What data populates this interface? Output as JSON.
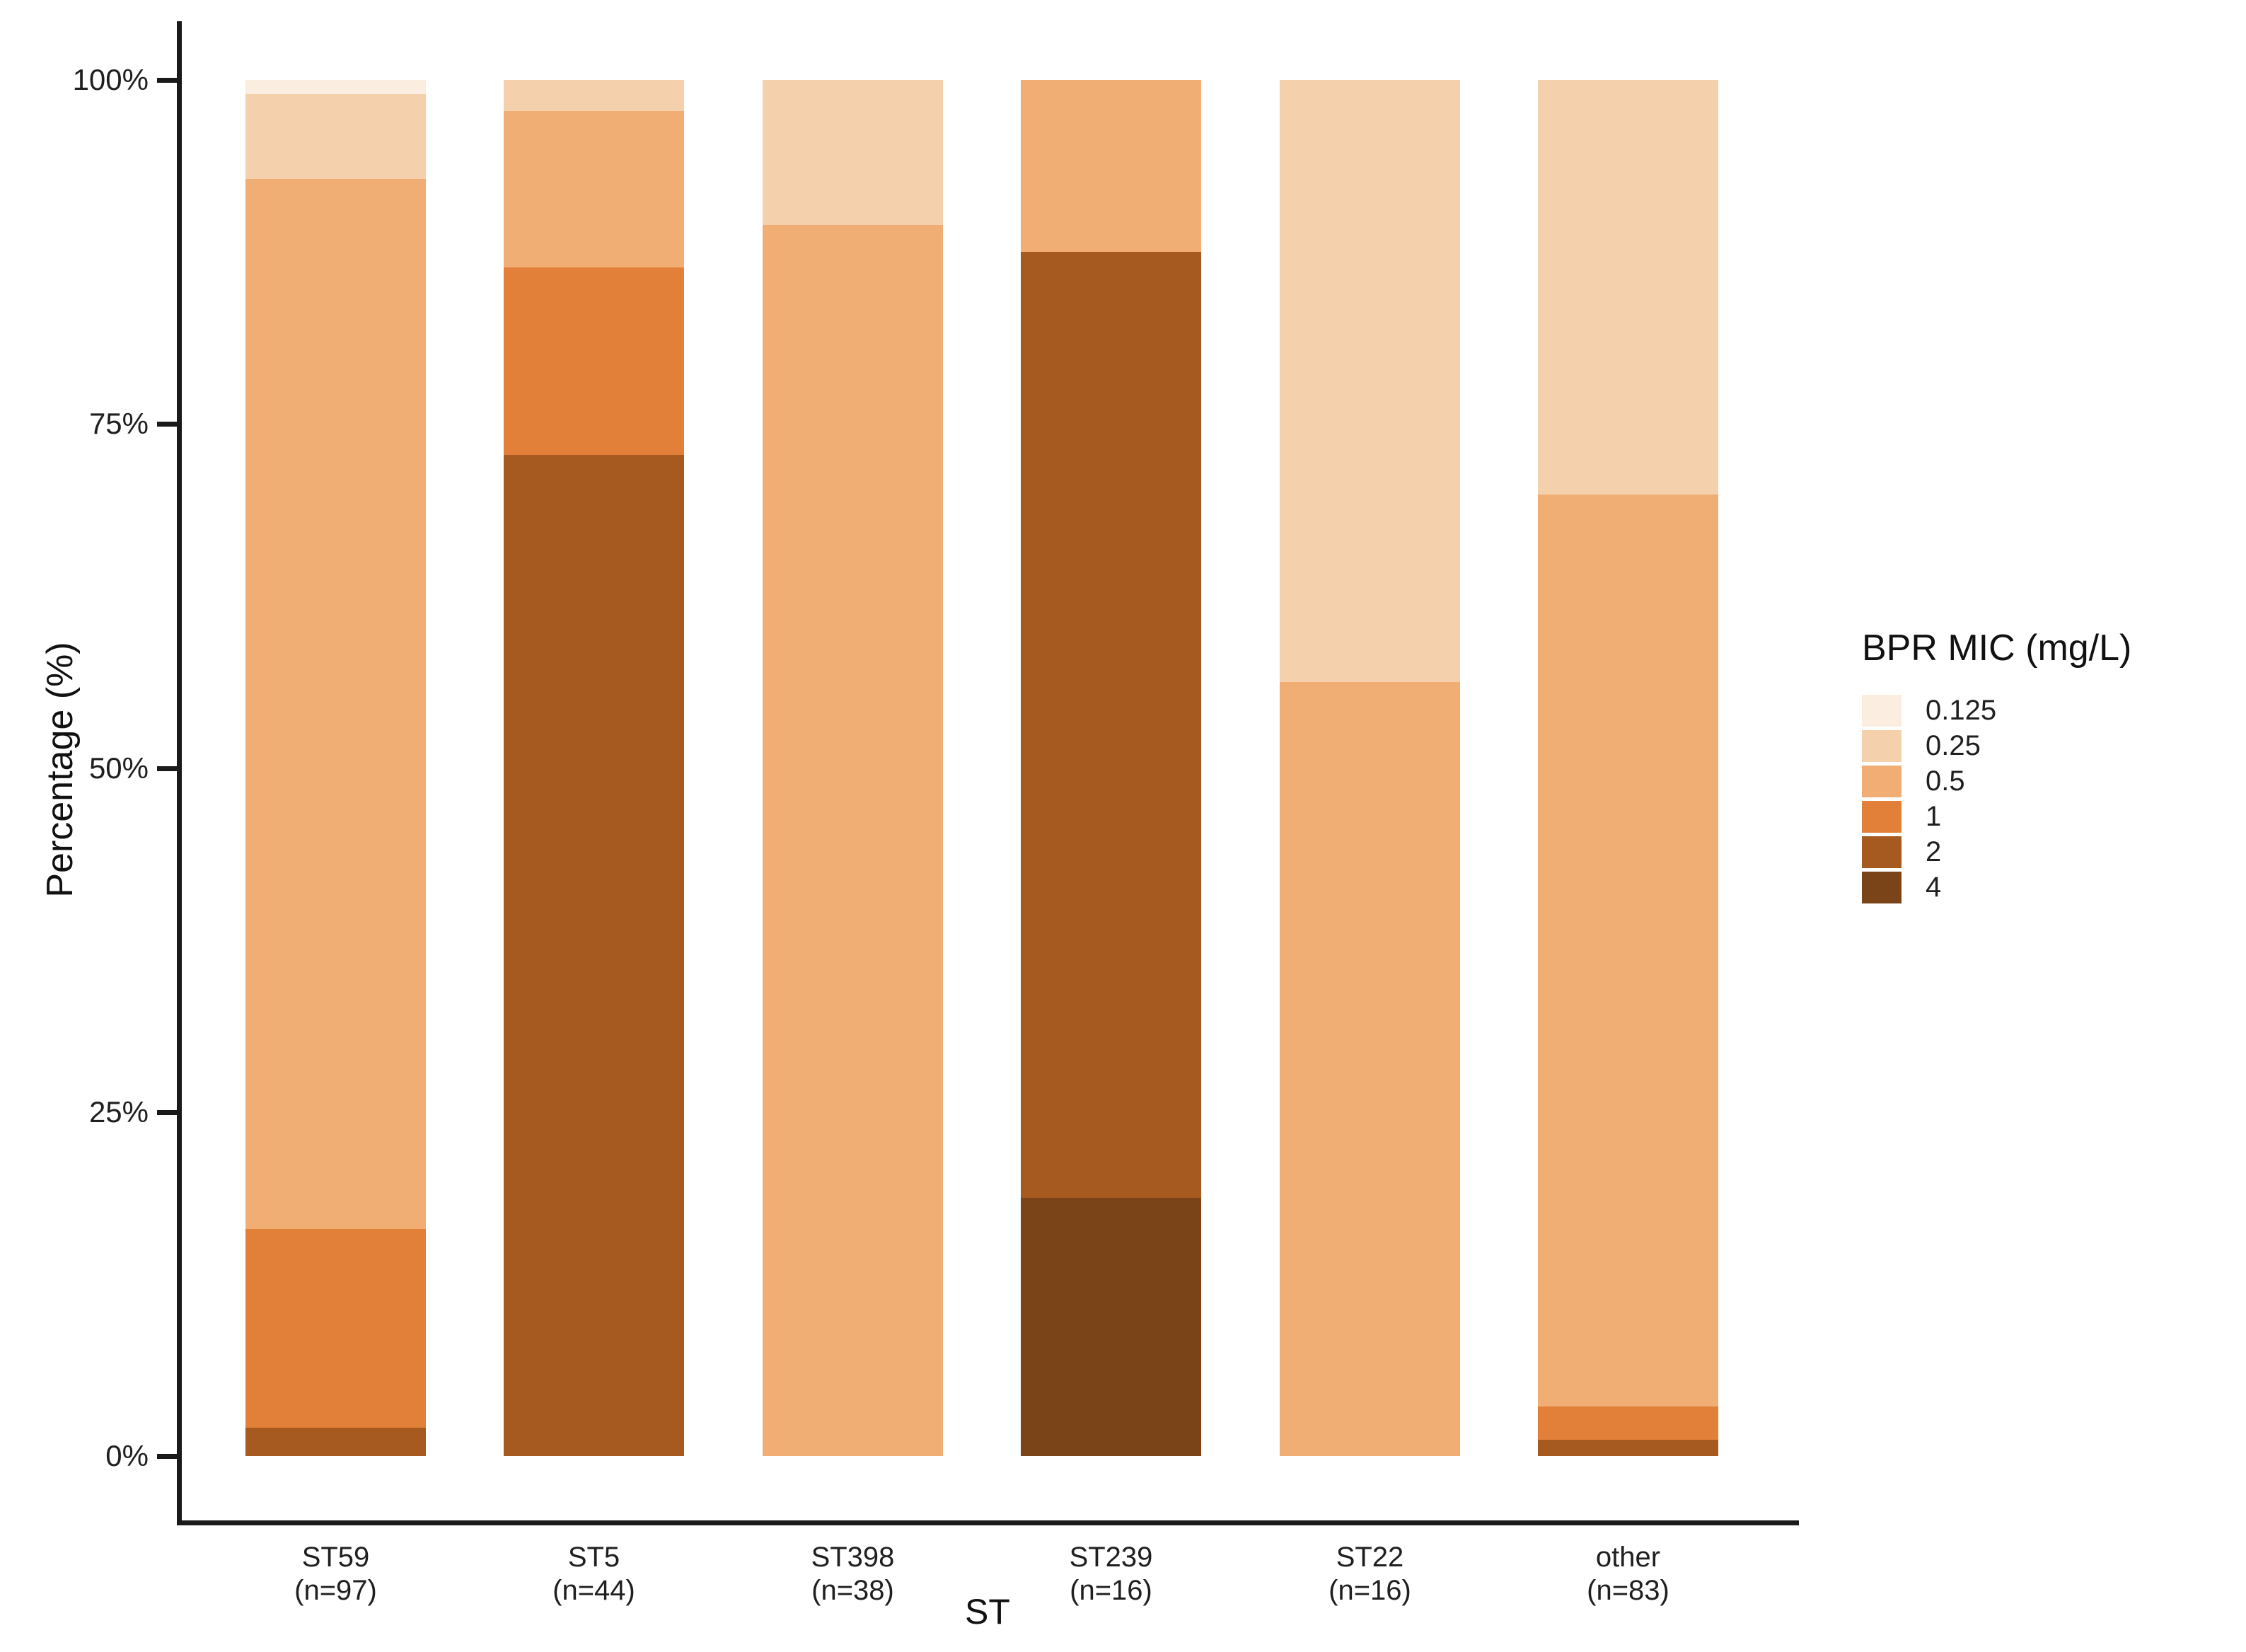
{
  "figure": {
    "background_color": "#ffffff",
    "axis_color": "#1a1a1a",
    "y_axis": {
      "title": "Percentage (%)",
      "ticks": [
        {
          "label": "0%",
          "value": 0
        },
        {
          "label": "25%",
          "value": 25
        },
        {
          "label": "50%",
          "value": 50
        },
        {
          "label": "75%",
          "value": 75
        },
        {
          "label": "100%",
          "value": 100
        }
      ]
    },
    "x_axis": {
      "title": "ST"
    },
    "legend": {
      "title": "BPR MIC (mg/L)",
      "position": "right",
      "entries": [
        {
          "label": "0.125",
          "color": "#fbeee0"
        },
        {
          "label": "0.25",
          "color": "#f5d0ad"
        },
        {
          "label": "0.5",
          "color": "#f0ae74"
        },
        {
          "label": "1",
          "color": "#e2803a"
        },
        {
          "label": "2",
          "color": "#a65a20"
        },
        {
          "label": "4",
          "color": "#7a4318"
        }
      ]
    }
  },
  "chart_data": {
    "type": "bar",
    "subtype": "stacked-percent",
    "title": "",
    "xlabel": "ST",
    "ylabel": "Percentage (%)",
    "ylim": [
      0,
      100
    ],
    "grid": false,
    "legend_title": "BPR MIC (mg/L)",
    "legend_position": "right",
    "categories": [
      "ST59",
      "ST5",
      "ST398",
      "ST239",
      "ST22",
      "other"
    ],
    "category_sublabels": [
      "(n=97)",
      "(n=44)",
      "(n=38)",
      "(n=16)",
      "(n=16)",
      "(n=83)"
    ],
    "category_n": [
      97,
      44,
      38,
      16,
      16,
      83
    ],
    "stack_order_bottom_to_top": [
      "4",
      "2",
      "1",
      "0.5",
      "0.25",
      "0.125"
    ],
    "series": [
      {
        "name": "0.125",
        "color": "#fbeee0",
        "counts": [
          1,
          0,
          0,
          0,
          0,
          0
        ],
        "values": [
          1.03,
          0,
          0,
          0,
          0,
          0
        ]
      },
      {
        "name": "0.25",
        "color": "#f5d0ad",
        "counts": [
          6,
          1,
          4,
          0,
          7,
          25
        ],
        "values": [
          6.19,
          2.27,
          10.53,
          0,
          43.75,
          30.12
        ]
      },
      {
        "name": "0.5",
        "color": "#f0ae74",
        "counts": [
          74,
          5,
          34,
          2,
          9,
          55
        ],
        "values": [
          76.29,
          11.36,
          89.47,
          12.5,
          56.25,
          66.27
        ]
      },
      {
        "name": "1",
        "color": "#e2803a",
        "counts": [
          14,
          6,
          0,
          0,
          0,
          2
        ],
        "values": [
          14.43,
          13.64,
          0,
          0,
          0,
          2.41
        ]
      },
      {
        "name": "2",
        "color": "#a65a20",
        "counts": [
          2,
          32,
          0,
          11,
          0,
          1
        ],
        "values": [
          2.06,
          72.73,
          0,
          68.75,
          0,
          1.2
        ]
      },
      {
        "name": "4",
        "color": "#7a4318",
        "counts": [
          0,
          0,
          0,
          3,
          0,
          0
        ],
        "values": [
          0,
          0,
          0,
          18.75,
          0,
          0
        ]
      }
    ]
  }
}
